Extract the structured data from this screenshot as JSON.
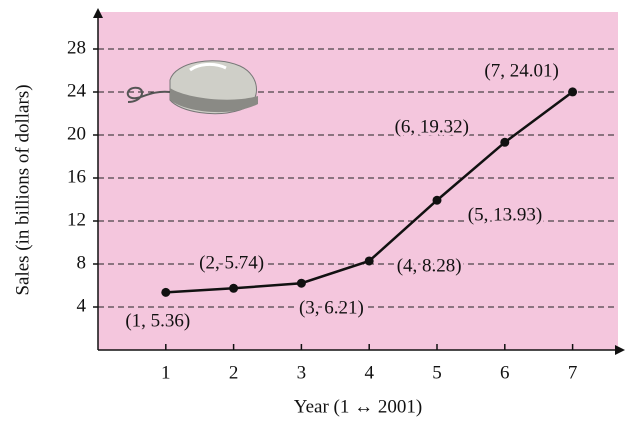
{
  "chart_data": {
    "type": "line",
    "x_label": "Year (1 ↔ 2001)",
    "y_label": "Sales (in billions of dollars)",
    "x": [
      1,
      2,
      3,
      4,
      5,
      6,
      7
    ],
    "series": [
      {
        "color": "#111111",
        "values": [
          5.36,
          5.74,
          6.21,
          8.28,
          13.93,
          19.32,
          24.01
        ],
        "value_labels": [
          "(1, 5.36)",
          "(2, 5.74)",
          "(3, 6.21)",
          "(4, 8.28)",
          "(5, 13.93)",
          "(6, 19.32)",
          "(7, 24.01)"
        ]
      }
    ],
    "xlim": [
      0,
      7.7
    ],
    "ylim": [
      0,
      31
    ],
    "xticks": [
      1,
      2,
      3,
      4,
      5,
      6,
      7
    ],
    "yticks": [
      4,
      8,
      12,
      16,
      20,
      24,
      28
    ],
    "grid": true,
    "background": "#f4c6dd"
  }
}
